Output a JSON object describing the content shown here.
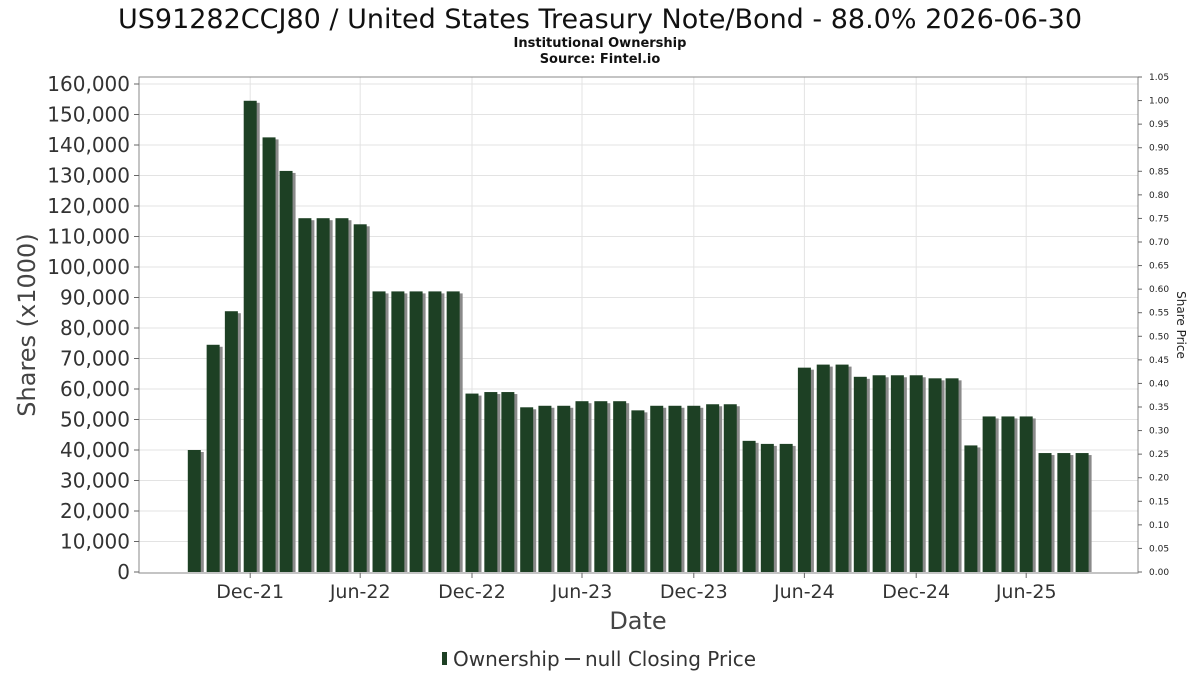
{
  "chart_data": {
    "type": "bar",
    "title": "US91282CCJ80 / United States Treasury Note/Bond - 88.0% 2026-06-30",
    "subtitle_lines": [
      "Institutional Ownership",
      "Source: Fintel.io"
    ],
    "xlabel": "Date",
    "ylabel": "Shares (x1000)",
    "y2label": "Share Price",
    "ylim": [
      0,
      160000
    ],
    "y2lim": [
      0,
      1.05
    ],
    "yticks": [
      "0",
      "10,000",
      "20,000",
      "30,000",
      "40,000",
      "50,000",
      "60,000",
      "70,000",
      "80,000",
      "90,000",
      "100,000",
      "110,000",
      "120,000",
      "130,000",
      "140,000",
      "150,000",
      "160,000"
    ],
    "y2ticks": [
      "0.00",
      "0.05",
      "0.10",
      "0.15",
      "0.20",
      "0.25",
      "0.30",
      "0.35",
      "0.40",
      "0.45",
      "0.50",
      "0.55",
      "0.60",
      "0.65",
      "0.70",
      "0.75",
      "0.80",
      "0.85",
      "0.90",
      "0.95",
      "1.00",
      "1.05"
    ],
    "xticks": [
      {
        "label": "Dec-21",
        "at": "2021-12-31"
      },
      {
        "label": "Jun-22",
        "at": "2022-06-30"
      },
      {
        "label": "Dec-22",
        "at": "2022-12-31"
      },
      {
        "label": "Jun-23",
        "at": "2023-06-30"
      },
      {
        "label": "Dec-23",
        "at": "2023-12-31"
      },
      {
        "label": "Jun-24",
        "at": "2024-06-30"
      },
      {
        "label": "Dec-24",
        "at": "2024-12-31"
      },
      {
        "label": "Jun-25",
        "at": "2025-06-30"
      }
    ],
    "x_range": [
      "2021-07-01",
      "2025-12-31"
    ],
    "grid": true,
    "legend_position": "bottom",
    "series": [
      {
        "name": "Ownership",
        "color": "#1d4024",
        "shadow_color": "#8a8a8a",
        "points": [
          {
            "date": "2021-09-30",
            "value": 40000
          },
          {
            "date": "2021-10-31",
            "value": 74500
          },
          {
            "date": "2021-11-30",
            "value": 85500
          },
          {
            "date": "2021-12-31",
            "value": 154500
          },
          {
            "date": "2022-01-31",
            "value": 142500
          },
          {
            "date": "2022-02-28",
            "value": 131500
          },
          {
            "date": "2022-03-31",
            "value": 116000
          },
          {
            "date": "2022-04-30",
            "value": 116000
          },
          {
            "date": "2022-05-31",
            "value": 116000
          },
          {
            "date": "2022-06-30",
            "value": 114000
          },
          {
            "date": "2022-07-31",
            "value": 92000
          },
          {
            "date": "2022-08-31",
            "value": 92000
          },
          {
            "date": "2022-09-30",
            "value": 92000
          },
          {
            "date": "2022-10-31",
            "value": 92000
          },
          {
            "date": "2022-11-30",
            "value": 92000
          },
          {
            "date": "2022-12-31",
            "value": 58500
          },
          {
            "date": "2023-01-31",
            "value": 59000
          },
          {
            "date": "2023-02-28",
            "value": 59000
          },
          {
            "date": "2023-03-31",
            "value": 54000
          },
          {
            "date": "2023-04-30",
            "value": 54500
          },
          {
            "date": "2023-05-31",
            "value": 54500
          },
          {
            "date": "2023-06-30",
            "value": 56000
          },
          {
            "date": "2023-07-31",
            "value": 56000
          },
          {
            "date": "2023-08-31",
            "value": 56000
          },
          {
            "date": "2023-09-30",
            "value": 53000
          },
          {
            "date": "2023-10-31",
            "value": 54500
          },
          {
            "date": "2023-11-30",
            "value": 54500
          },
          {
            "date": "2023-12-31",
            "value": 54500
          },
          {
            "date": "2024-01-31",
            "value": 55000
          },
          {
            "date": "2024-02-29",
            "value": 55000
          },
          {
            "date": "2024-03-31",
            "value": 43000
          },
          {
            "date": "2024-04-30",
            "value": 42000
          },
          {
            "date": "2024-05-31",
            "value": 42000
          },
          {
            "date": "2024-06-30",
            "value": 67000
          },
          {
            "date": "2024-07-31",
            "value": 68000
          },
          {
            "date": "2024-08-31",
            "value": 68000
          },
          {
            "date": "2024-09-30",
            "value": 64000
          },
          {
            "date": "2024-10-31",
            "value": 64500
          },
          {
            "date": "2024-11-30",
            "value": 64500
          },
          {
            "date": "2024-12-31",
            "value": 64500
          },
          {
            "date": "2025-01-31",
            "value": 63500
          },
          {
            "date": "2025-02-28",
            "value": 63500
          },
          {
            "date": "2025-03-31",
            "value": 41500
          },
          {
            "date": "2025-04-30",
            "value": 51000
          },
          {
            "date": "2025-05-31",
            "value": 51000
          },
          {
            "date": "2025-06-30",
            "value": 51000
          },
          {
            "date": "2025-07-31",
            "value": 39000
          },
          {
            "date": "2025-08-31",
            "value": 39000
          },
          {
            "date": "2025-09-30",
            "value": 39000
          }
        ]
      }
    ],
    "legend": [
      {
        "label": "Ownership",
        "marker": "bar",
        "color": "#1d4024"
      },
      {
        "label": "null Closing Price",
        "marker": "line",
        "color": "#444444"
      }
    ]
  }
}
